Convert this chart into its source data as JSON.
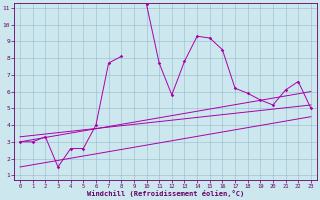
{
  "xlabel": "Windchill (Refroidissement éolien,°C)",
  "bg_color": "#cce8ee",
  "line_color": "#aa00aa",
  "grid_color": "#99bbcc",
  "xmin": 0,
  "xmax": 23,
  "ymin": 1,
  "ymax": 11,
  "yticks": [
    1,
    2,
    3,
    4,
    5,
    6,
    7,
    8,
    9,
    10,
    11
  ],
  "xticks": [
    0,
    1,
    2,
    3,
    4,
    5,
    6,
    7,
    8,
    9,
    10,
    11,
    12,
    13,
    14,
    15,
    16,
    17,
    18,
    19,
    20,
    21,
    22,
    23
  ],
  "series1_x": [
    0,
    1,
    2,
    3,
    4,
    5,
    6,
    7,
    8,
    9,
    10,
    11,
    12,
    13,
    14,
    15,
    16,
    17,
    18,
    19,
    20,
    21,
    22,
    23
  ],
  "series1_y": [
    3.0,
    3.0,
    3.3,
    1.5,
    2.6,
    2.6,
    4.0,
    7.7,
    8.1,
    null,
    11.2,
    7.7,
    5.8,
    7.8,
    9.3,
    9.2,
    8.5,
    6.2,
    5.9,
    5.5,
    5.2,
    6.1,
    6.6,
    5.0
  ],
  "series2_x": [
    0,
    23
  ],
  "series2_y": [
    3.0,
    6.0
  ],
  "series3_x": [
    0,
    23
  ],
  "series3_y": [
    3.3,
    5.2
  ],
  "series4_x": [
    0,
    23
  ],
  "series4_y": [
    1.5,
    4.5
  ]
}
